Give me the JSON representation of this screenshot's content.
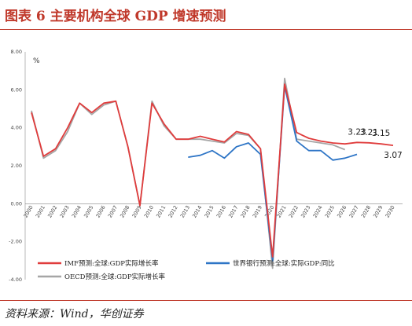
{
  "header": {
    "title": "图表 6   主要机构全球 GDP 增速预测"
  },
  "footer": {
    "source": "资料来源：Wind，华创证券"
  },
  "chart_data": {
    "type": "line",
    "unit_label": "%",
    "ylim": [
      -4,
      8
    ],
    "yticks": [
      "8.00",
      "6.00",
      "4.00",
      "2.00",
      "0.00",
      "-2.00",
      "-4.00"
    ],
    "categories": [
      "2000",
      "2001",
      "2002",
      "2003",
      "2004",
      "2005",
      "2006",
      "2007",
      "2008",
      "2009",
      "2010",
      "2011",
      "2012",
      "2013",
      "2014",
      "2015",
      "2016",
      "2017",
      "2018",
      "2019",
      "2020",
      "2021",
      "2022",
      "2023",
      "2024",
      "2025",
      "2026",
      "2027",
      "2028",
      "2029",
      "2030"
    ],
    "xtick_labels": [
      "2000",
      "2001",
      "2002",
      "2003",
      "2004",
      "2005",
      "2006",
      "2007",
      "2008",
      "2009",
      "2010",
      "2011",
      "2012",
      "2013",
      "2014",
      "2015",
      "2016",
      "2017",
      "2018",
      "2019",
      "2020",
      "2021",
      "2022",
      "2023",
      "2024",
      "2025",
      "2026",
      "2027",
      "2028",
      "2029",
      "2030"
    ],
    "series": [
      {
        "name": "IMF预测:全球:GDP实际增长率",
        "color": "#e03c3c",
        "values": [
          4.8,
          2.5,
          2.9,
          4.0,
          5.3,
          4.8,
          5.3,
          5.4,
          3.0,
          -0.1,
          5.3,
          4.2,
          3.4,
          3.4,
          3.55,
          3.4,
          3.25,
          3.8,
          3.65,
          2.9,
          -2.8,
          6.3,
          3.75,
          3.45,
          3.3,
          3.2,
          3.15,
          3.23,
          3.21,
          3.15,
          3.07
        ]
      },
      {
        "name": "世界银行预测:全球:实际GDP:同比",
        "color": "#2e75c6",
        "values": [
          null,
          null,
          null,
          null,
          null,
          null,
          null,
          null,
          null,
          null,
          null,
          null,
          null,
          2.45,
          2.55,
          2.8,
          2.4,
          3.0,
          3.2,
          2.6,
          -3.0,
          6.2,
          3.3,
          2.8,
          2.8,
          2.3,
          2.4,
          2.6,
          null,
          null,
          null
        ]
      },
      {
        "name": "OECD预测:全球:GDP实际增长率",
        "color": "#a6a6a6",
        "values": [
          4.9,
          2.4,
          2.8,
          3.8,
          5.3,
          4.7,
          5.2,
          5.4,
          3.0,
          -0.1,
          5.4,
          4.1,
          3.4,
          3.4,
          3.4,
          3.3,
          3.2,
          3.7,
          3.6,
          2.9,
          -3.4,
          6.6,
          3.4,
          3.3,
          3.2,
          3.1,
          2.85,
          null,
          null,
          null,
          null
        ]
      }
    ],
    "annotations": [
      {
        "category": "2027",
        "label": "3.23"
      },
      {
        "category": "2028",
        "label": "3.21"
      },
      {
        "category": "2029",
        "label": "3.15"
      },
      {
        "category": "2030",
        "label": "3.07"
      }
    ],
    "grid": false,
    "legend_position": "bottom"
  }
}
